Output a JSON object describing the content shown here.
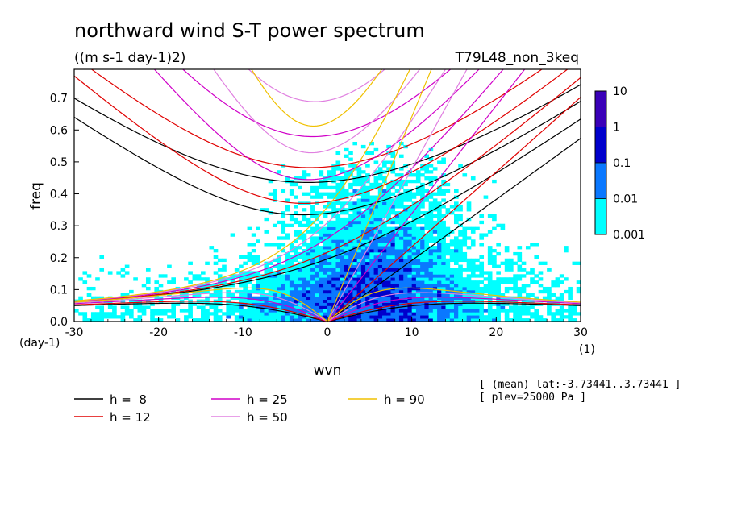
{
  "header": {
    "title": "northward wind S-T power spectrum",
    "units": "((m s-1 day-1)2)",
    "experiment": "T79L48_non_3keq"
  },
  "info": {
    "mean_line": "[ (mean) lat:-3.73441..3.73441 ]",
    "plev_line": "[ plev=25000 Pa ]"
  },
  "chart_data": {
    "type": "heatmap",
    "title": "northward wind S-T power spectrum",
    "xlabel": "wvn",
    "ylabel": "freq",
    "x_unit_label": "(1)",
    "y_unit_label": "(day-1)",
    "xlim": [
      -30,
      30
    ],
    "ylim": [
      0,
      0.79
    ],
    "x_ticks": [
      -30,
      -20,
      -10,
      0,
      10,
      20,
      30
    ],
    "x_tick_labels": [
      "-30",
      "-20",
      "-10",
      "0",
      "10",
      "20",
      "30"
    ],
    "y_ticks": [
      0,
      0.1,
      0.2,
      0.3,
      0.4,
      0.5,
      0.6,
      0.7
    ],
    "y_tick_labels": [
      "0.0",
      "0.1",
      "0.2",
      "0.3",
      "0.4",
      "0.5",
      "0.6",
      "0.7"
    ],
    "colorbar": {
      "levels": [
        0.001,
        0.01,
        0.1,
        1,
        10
      ],
      "labels": [
        "0.001",
        "0.01",
        "0.1",
        "1",
        "10"
      ],
      "colors": [
        "#00ffff",
        "#0a78ff",
        "#0000cc",
        "#3a00b8"
      ],
      "scale": "log"
    },
    "dispersion_curves": {
      "description_legend": [
        "h =  8",
        "h = 12",
        "h = 25",
        "h = 50",
        "h = 90"
      ],
      "equivalent_depths_m": [
        8,
        12,
        25,
        50,
        90
      ],
      "colors": [
        "#000000",
        "#e00000",
        "#d000c8",
        "#e080e0",
        "#f0c000"
      ]
    },
    "grid": false,
    "legend_position": "bottom"
  }
}
